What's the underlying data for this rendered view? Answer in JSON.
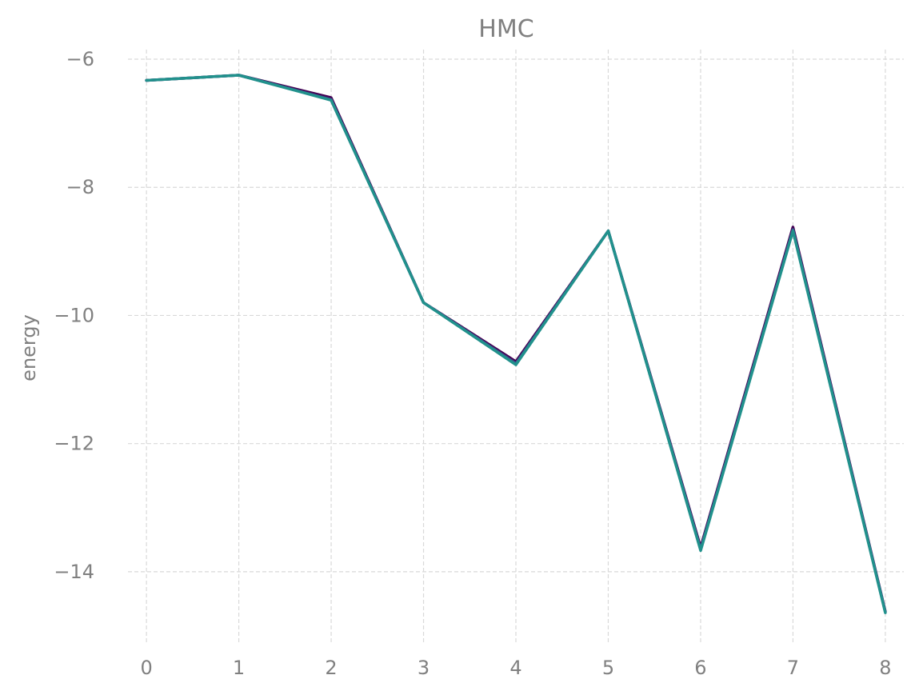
{
  "chart_data": {
    "type": "line",
    "title": "HMC",
    "xlabel": "",
    "ylabel": "energy",
    "x": [
      0,
      1,
      2,
      3,
      4,
      5,
      6,
      7,
      8
    ],
    "xticks": [
      "0",
      "1",
      "2",
      "3",
      "4",
      "5",
      "6",
      "7",
      "8"
    ],
    "yticks": [
      -6,
      -8,
      -10,
      -12,
      -14
    ],
    "ytick_labels": [
      "−6",
      "−8",
      "−10",
      "−12",
      "−14"
    ],
    "xlim": [
      -0.2,
      8.2
    ],
    "ylim": [
      -15.1,
      -5.85
    ],
    "grid": true,
    "series": [
      {
        "color": "#440154",
        "values": [
          -6.33,
          -6.25,
          -6.6,
          -9.8,
          -10.72,
          -8.68,
          -13.62,
          -8.62,
          -14.62
        ]
      },
      {
        "color": "#3b528b",
        "values": [
          -6.33,
          -6.25,
          -6.63,
          -9.8,
          -10.75,
          -8.68,
          -13.65,
          -8.66,
          -14.63
        ]
      },
      {
        "color": "#21918c",
        "values": [
          -6.33,
          -6.25,
          -6.64,
          -9.8,
          -10.77,
          -8.68,
          -13.67,
          -8.68,
          -14.64
        ]
      }
    ]
  }
}
